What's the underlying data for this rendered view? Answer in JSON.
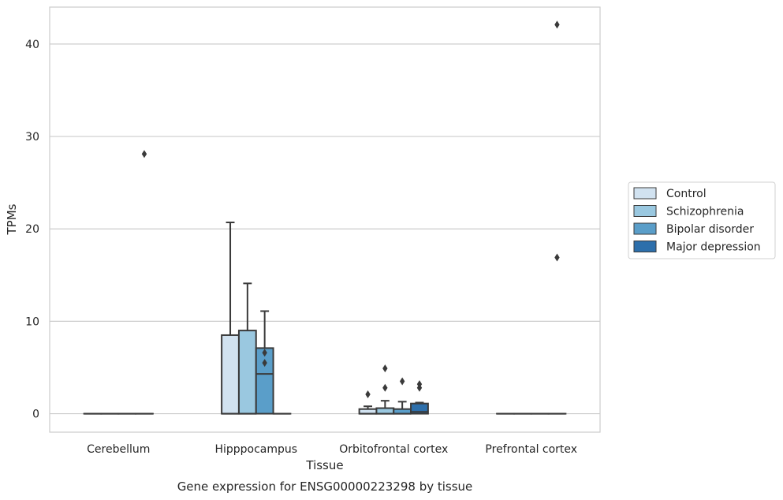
{
  "chart_data": {
    "type": "box",
    "xlabel": "Tissue",
    "ylabel": "TPMs",
    "caption": "Gene expression for ENSG00000223298 by tissue",
    "categories": [
      "Cerebellum",
      "Hipppocampus",
      "Orbitofrontal cortex",
      "Prefrontal cortex"
    ],
    "ylim": [
      -2,
      44
    ],
    "yticks": [
      0,
      10,
      20,
      30,
      40
    ],
    "grid": true,
    "legend_position": "right",
    "series": [
      {
        "name": "Control",
        "color": "#d1e2f0",
        "boxes": [
          {
            "q1": 0,
            "median": 0,
            "q3": 0,
            "whislo": 0,
            "whishi": 0,
            "fliers": []
          },
          {
            "q1": 0,
            "median": 0,
            "q3": 8.5,
            "whislo": 0,
            "whishi": 20.7,
            "fliers": []
          },
          {
            "q1": 0,
            "median": 0,
            "q3": 0.5,
            "whislo": 0,
            "whishi": 0.8,
            "fliers": [
              2.1
            ]
          },
          {
            "q1": 0,
            "median": 0,
            "q3": 0,
            "whislo": 0,
            "whishi": 0,
            "fliers": []
          }
        ]
      },
      {
        "name": "Schizophrenia",
        "color": "#9ac8e0",
        "boxes": [
          {
            "q1": 0,
            "median": 0,
            "q3": 0,
            "whislo": 0,
            "whishi": 0,
            "fliers": []
          },
          {
            "q1": 0,
            "median": 0,
            "q3": 9.0,
            "whislo": 0,
            "whishi": 14.1,
            "fliers": []
          },
          {
            "q1": 0,
            "median": 0,
            "q3": 0.6,
            "whislo": 0,
            "whishi": 1.4,
            "fliers": [
              2.8,
              4.9
            ]
          },
          {
            "q1": 0,
            "median": 0,
            "q3": 0,
            "whislo": 0,
            "whishi": 0,
            "fliers": []
          }
        ]
      },
      {
        "name": "Bipolar disorder",
        "color": "#5a9ec9",
        "boxes": [
          {
            "q1": 0,
            "median": 0,
            "q3": 0,
            "whislo": 0,
            "whishi": 0,
            "fliers": []
          },
          {
            "q1": 0,
            "median": 4.3,
            "q3": 7.1,
            "whislo": 0,
            "whishi": 11.1,
            "fliers": [
              5.5,
              6.6
            ]
          },
          {
            "q1": 0,
            "median": 0,
            "q3": 0.5,
            "whislo": 0,
            "whishi": 1.3,
            "fliers": [
              3.5
            ]
          },
          {
            "q1": 0,
            "median": 0,
            "q3": 0,
            "whislo": 0,
            "whishi": 0,
            "fliers": []
          }
        ]
      },
      {
        "name": "Major depression",
        "color": "#2d6fab",
        "boxes": [
          {
            "q1": 0,
            "median": 0,
            "q3": 0,
            "whislo": 0,
            "whishi": 0,
            "fliers": [
              28.1
            ]
          },
          {
            "q1": 0,
            "median": 0,
            "q3": 0,
            "whislo": 0,
            "whishi": 0,
            "fliers": []
          },
          {
            "q1": 0,
            "median": 0.2,
            "q3": 1.1,
            "whislo": 0,
            "whishi": 1.2,
            "fliers": [
              2.8,
              3.2
            ]
          },
          {
            "q1": 0,
            "median": 0,
            "q3": 0,
            "whislo": 0,
            "whishi": 0,
            "fliers": [
              16.9,
              42.1
            ]
          }
        ]
      }
    ]
  }
}
